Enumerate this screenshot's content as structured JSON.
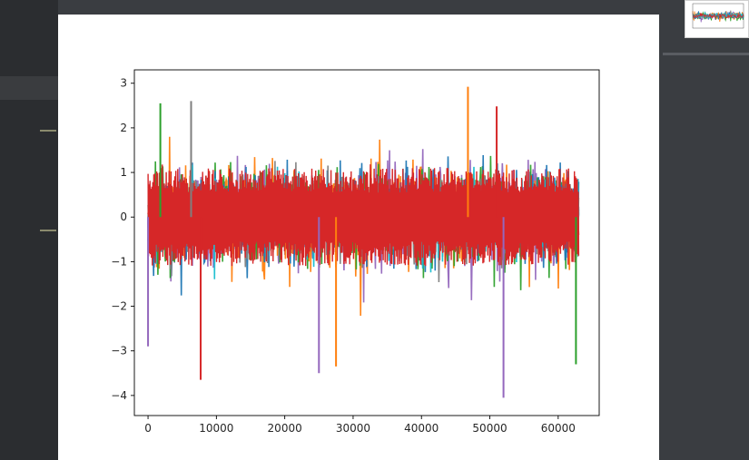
{
  "chart_data": {
    "type": "line",
    "title": "",
    "xlabel": "",
    "ylabel": "",
    "xlim": [
      -2000,
      66000
    ],
    "ylim": [
      -4.45,
      3.3
    ],
    "x_ticks": [
      0,
      10000,
      20000,
      30000,
      40000,
      50000,
      60000
    ],
    "x_tick_labels": [
      "0",
      "10000",
      "20000",
      "30000",
      "40000",
      "50000",
      "60000"
    ],
    "y_ticks": [
      3,
      2,
      1,
      0,
      -1,
      -2,
      -3,
      -4
    ],
    "y_tick_labels": [
      "3",
      "2",
      "1",
      "0",
      "−1",
      "−2",
      "−3",
      "−4"
    ],
    "x_range": [
      0,
      63000
    ],
    "grid": false,
    "legend": "none",
    "noise_description": "many overlapping noisy series centred on 0",
    "series": [
      {
        "color": "#9467bd",
        "spread": 1.0
      },
      {
        "color": "#ff7f0e",
        "spread": 1.0
      },
      {
        "color": "#2ca02c",
        "spread": 0.95
      },
      {
        "color": "#1f77b4",
        "spread": 0.85
      },
      {
        "color": "#7f7f7f",
        "spread": 0.8
      },
      {
        "color": "#17becf",
        "spread": 0.75
      },
      {
        "color": "#d62728",
        "spread": 0.6
      }
    ],
    "notable_spikes": [
      {
        "x": 46800,
        "y": 2.92,
        "color": "#ff7f0e"
      },
      {
        "x": 6300,
        "y": 2.6,
        "color": "#7f7f7f"
      },
      {
        "x": 1800,
        "y": 2.55,
        "color": "#2ca02c"
      },
      {
        "x": 51000,
        "y": 2.48,
        "color": "#d62728"
      },
      {
        "x": 52000,
        "y": -4.05,
        "color": "#9467bd"
      },
      {
        "x": 7700,
        "y": -3.65,
        "color": "#d62728"
      },
      {
        "x": 25000,
        "y": -3.5,
        "color": "#9467bd"
      },
      {
        "x": 27500,
        "y": -3.35,
        "color": "#ff7f0e"
      },
      {
        "x": 62600,
        "y": -3.3,
        "color": "#2ca02c"
      },
      {
        "x": 0,
        "y": -2.9,
        "color": "#9467bd"
      }
    ]
  },
  "colors": {
    "ide_background": "#2b2d30",
    "panel_background": "#3a3d41",
    "plot_background": "#ffffff"
  }
}
